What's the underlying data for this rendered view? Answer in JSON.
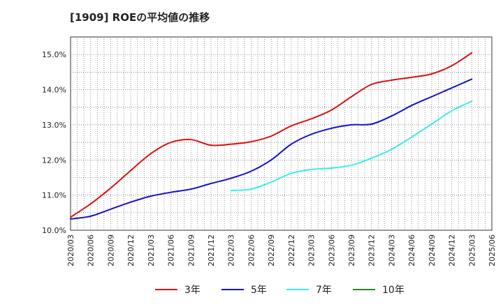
{
  "chart_data": {
    "type": "line",
    "title": "[1909]  ROEの平均値の推移",
    "xlabel": "",
    "ylabel": "",
    "ylim": [
      10.0,
      15.5
    ],
    "yticks": [
      10.0,
      11.0,
      12.0,
      13.0,
      14.0,
      15.0
    ],
    "ytick_labels": [
      "10.0%",
      "11.0%",
      "12.0%",
      "13.0%",
      "14.0%",
      "15.0%"
    ],
    "x_range": [
      "2020/03",
      "2025/06"
    ],
    "xtick_labels": [
      "2020/03",
      "2020/06",
      "2020/09",
      "2020/12",
      "2021/03",
      "2021/06",
      "2021/09",
      "2021/12",
      "2022/03",
      "2022/06",
      "2022/09",
      "2022/12",
      "2023/03",
      "2023/06",
      "2023/09",
      "2023/12",
      "2024/03",
      "2024/06",
      "2024/09",
      "2024/12",
      "2025/03",
      "2025/06"
    ],
    "grid": true,
    "legend_position": "bottom",
    "series": [
      {
        "name": "3年",
        "color": "#dd1111",
        "points": [
          [
            "2020/03",
            10.37
          ],
          [
            "2020/06",
            10.75
          ],
          [
            "2020/09",
            11.2
          ],
          [
            "2020/12",
            11.7
          ],
          [
            "2021/03",
            12.18
          ],
          [
            "2021/06",
            12.5
          ],
          [
            "2021/09",
            12.58
          ],
          [
            "2021/12",
            12.42
          ],
          [
            "2022/03",
            12.45
          ],
          [
            "2022/06",
            12.52
          ],
          [
            "2022/09",
            12.68
          ],
          [
            "2022/12",
            12.97
          ],
          [
            "2023/03",
            13.17
          ],
          [
            "2023/06",
            13.42
          ],
          [
            "2023/09",
            13.8
          ],
          [
            "2023/12",
            14.15
          ],
          [
            "2024/03",
            14.27
          ],
          [
            "2024/06",
            14.35
          ],
          [
            "2024/09",
            14.45
          ],
          [
            "2024/12",
            14.68
          ],
          [
            "2025/03",
            15.05
          ]
        ]
      },
      {
        "name": "5年",
        "color": "#1111cc",
        "points": [
          [
            "2020/03",
            10.32
          ],
          [
            "2020/06",
            10.4
          ],
          [
            "2020/09",
            10.6
          ],
          [
            "2020/12",
            10.8
          ],
          [
            "2021/03",
            10.97
          ],
          [
            "2021/06",
            11.08
          ],
          [
            "2021/09",
            11.17
          ],
          [
            "2021/12",
            11.33
          ],
          [
            "2022/03",
            11.48
          ],
          [
            "2022/06",
            11.68
          ],
          [
            "2022/09",
            12.0
          ],
          [
            "2022/12",
            12.45
          ],
          [
            "2023/03",
            12.73
          ],
          [
            "2023/06",
            12.9
          ],
          [
            "2023/09",
            13.0
          ],
          [
            "2023/12",
            13.02
          ],
          [
            "2024/03",
            13.25
          ],
          [
            "2024/06",
            13.55
          ],
          [
            "2024/09",
            13.8
          ],
          [
            "2024/12",
            14.05
          ],
          [
            "2025/03",
            14.3
          ]
        ]
      },
      {
        "name": "7年",
        "color": "#33eeee",
        "points": [
          [
            "2022/03",
            11.13
          ],
          [
            "2022/06",
            11.17
          ],
          [
            "2022/09",
            11.37
          ],
          [
            "2022/12",
            11.62
          ],
          [
            "2023/03",
            11.73
          ],
          [
            "2023/06",
            11.77
          ],
          [
            "2023/09",
            11.85
          ],
          [
            "2023/12",
            12.05
          ],
          [
            "2024/03",
            12.3
          ],
          [
            "2024/06",
            12.65
          ],
          [
            "2024/09",
            13.02
          ],
          [
            "2024/12",
            13.4
          ],
          [
            "2025/03",
            13.67
          ]
        ]
      },
      {
        "name": "10年",
        "color": "#228b22",
        "points": []
      }
    ]
  }
}
